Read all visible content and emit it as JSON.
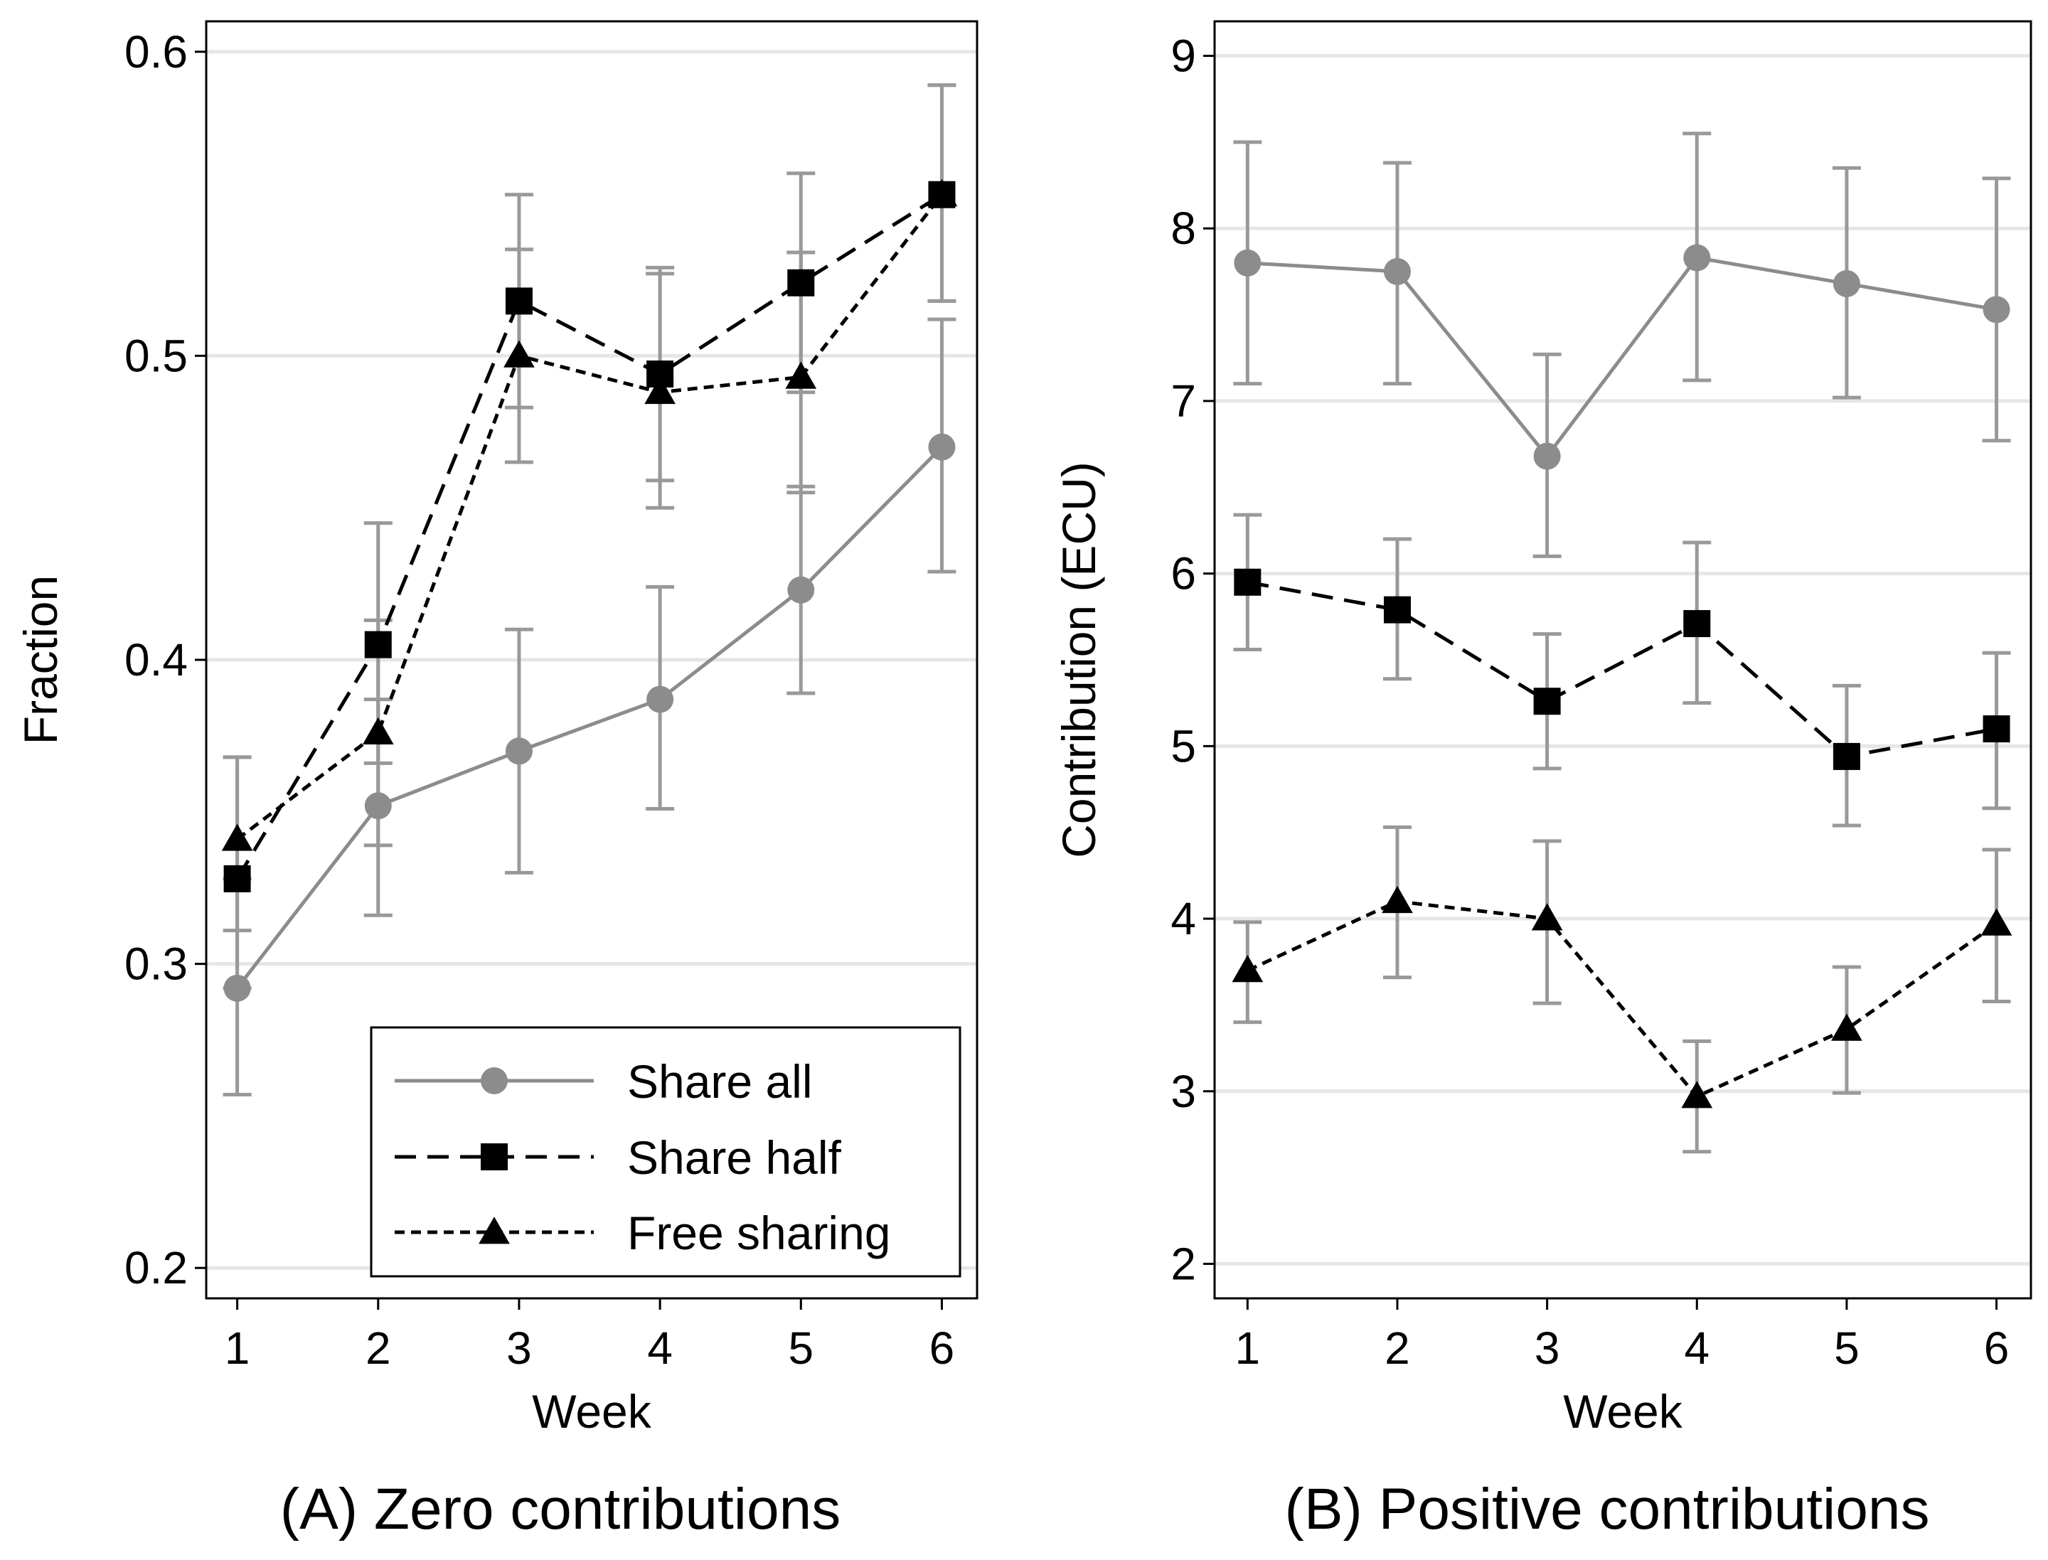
{
  "chart_data": [
    {
      "type": "line",
      "panel": "A",
      "title": "(A) Zero contributions",
      "xlabel": "Week",
      "ylabel": "Fraction",
      "x": [
        1,
        2,
        3,
        4,
        5,
        6
      ],
      "xticks": [
        "1",
        "2",
        "3",
        "4",
        "5",
        "6"
      ],
      "xlim": [
        0.78,
        6.25
      ],
      "ylim": [
        0.19,
        0.61
      ],
      "yticks": [
        0.2,
        0.3,
        0.4,
        0.5,
        0.6
      ],
      "ytick_labels": [
        "0.2",
        "0.3",
        "0.4",
        "0.5",
        "0.6"
      ],
      "grid": true,
      "legend": {
        "position": "bottom-right",
        "entries": [
          "Share all",
          "Share half",
          "Free sharing"
        ]
      },
      "series": [
        {
          "name": "Share all",
          "marker": "circle",
          "style": "solid",
          "color": "#8c8c8c",
          "values": [
            0.292,
            0.352,
            0.37,
            0.387,
            0.423,
            0.47
          ],
          "ci_low": [
            0.257,
            0.316,
            0.33,
            0.351,
            0.389,
            0.429
          ],
          "ci_high": [
            0.328,
            0.387,
            0.41,
            0.424,
            0.457,
            0.512
          ]
        },
        {
          "name": "Share half",
          "marker": "square",
          "style": "longdash",
          "color": "#000000",
          "values": [
            0.328,
            0.405,
            0.518,
            0.494,
            0.524,
            0.553
          ],
          "ci_low": [
            0.292,
            0.366,
            0.483,
            0.459,
            0.488,
            0.518
          ],
          "ci_high": [
            0.368,
            0.445,
            0.553,
            0.529,
            0.56,
            0.589
          ]
        },
        {
          "name": "Free sharing",
          "marker": "triangle",
          "style": "shortdash",
          "color": "#000000",
          "values": [
            0.341,
            0.376,
            0.5,
            0.488,
            0.493,
            0.553
          ],
          "ci_low": [
            0.311,
            0.339,
            0.465,
            0.45,
            0.455,
            0.518
          ],
          "ci_high": [
            0.368,
            0.413,
            0.535,
            0.527,
            0.534,
            0.589
          ]
        }
      ]
    },
    {
      "type": "line",
      "panel": "B",
      "title": "(B) Positive contributions",
      "xlabel": "Week",
      "ylabel": "Contribution (ECU)",
      "x": [
        1,
        2,
        3,
        4,
        5,
        6
      ],
      "xticks": [
        "1",
        "2",
        "3",
        "4",
        "5",
        "6"
      ],
      "xlim": [
        0.78,
        6.23
      ],
      "ylim": [
        1.8,
        9.2
      ],
      "yticks": [
        2,
        3,
        4,
        5,
        6,
        7,
        8,
        9
      ],
      "ytick_labels": [
        "2",
        "3",
        "4",
        "5",
        "6",
        "7",
        "8",
        "9"
      ],
      "grid": true,
      "series": [
        {
          "name": "Share all",
          "marker": "circle",
          "style": "solid",
          "color": "#8c8c8c",
          "values": [
            7.8,
            7.75,
            6.68,
            7.83,
            7.68,
            7.53
          ],
          "ci_low": [
            7.1,
            7.1,
            6.1,
            7.12,
            7.02,
            6.77
          ],
          "ci_high": [
            8.5,
            8.38,
            7.27,
            8.55,
            8.35,
            8.29
          ]
        },
        {
          "name": "Share half",
          "marker": "square",
          "style": "longdash",
          "color": "#000000",
          "values": [
            5.95,
            5.79,
            5.26,
            5.71,
            4.94,
            5.1
          ],
          "ci_low": [
            5.56,
            5.39,
            4.87,
            5.25,
            4.54,
            4.64
          ],
          "ci_high": [
            6.34,
            6.2,
            5.65,
            6.18,
            5.35,
            5.54
          ]
        },
        {
          "name": "Free sharing",
          "marker": "triangle",
          "style": "shortdash",
          "color": "#000000",
          "values": [
            3.7,
            4.1,
            4.0,
            2.97,
            3.36,
            3.97
          ],
          "ci_low": [
            3.4,
            3.66,
            3.51,
            2.65,
            2.99,
            3.52
          ],
          "ci_high": [
            3.98,
            4.53,
            4.45,
            3.29,
            3.72,
            4.4
          ]
        }
      ]
    }
  ]
}
